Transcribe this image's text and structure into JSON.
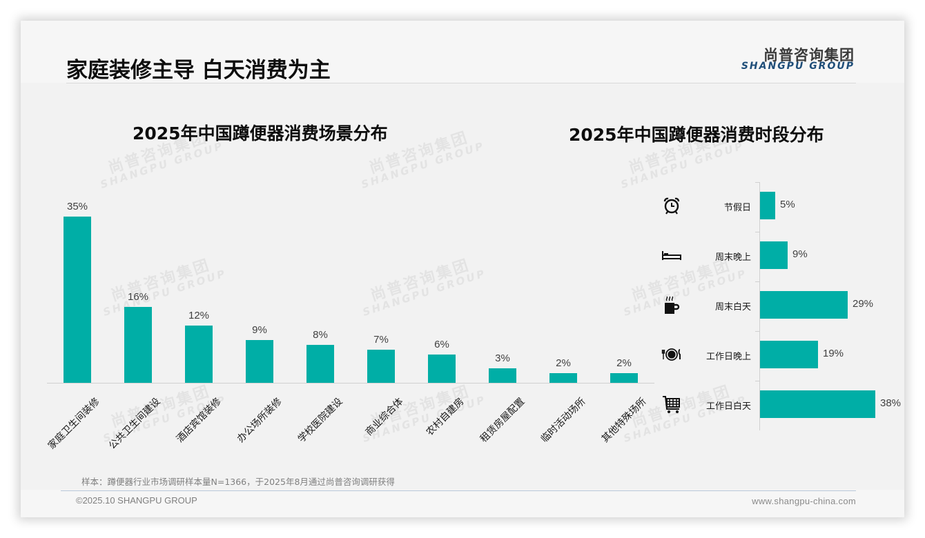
{
  "header": {
    "title": "家庭装修主导 白天消费为主",
    "logo_cn": "尚普咨询集团",
    "logo_en": "SHANGPU GROUP"
  },
  "watermark": {
    "cn": "尚普咨询集团",
    "en": "SHANGPU GROUP"
  },
  "left_chart": {
    "title": "2025年中国蹲便器消费场景分布",
    "bar_color": "#00aea6",
    "items": [
      {
        "label": "家庭卫生间装修",
        "value": 35,
        "display": "35%"
      },
      {
        "label": "公共卫生间建设",
        "value": 16,
        "display": "16%"
      },
      {
        "label": "酒店宾馆装修",
        "value": 12,
        "display": "12%"
      },
      {
        "label": "办公场所装修",
        "value": 9,
        "display": "9%"
      },
      {
        "label": "学校医院建设",
        "value": 8,
        "display": "8%"
      },
      {
        "label": "商业综合体",
        "value": 7,
        "display": "7%"
      },
      {
        "label": "农村自建房",
        "value": 6,
        "display": "6%"
      },
      {
        "label": "租赁房屋配置",
        "value": 3,
        "display": "3%"
      },
      {
        "label": "临时活动场所",
        "value": 2,
        "display": "2%"
      },
      {
        "label": "其他特殊场所",
        "value": 2,
        "display": "2%"
      }
    ]
  },
  "right_chart": {
    "title": "2025年中国蹲便器消费时段分布",
    "bar_color": "#00aea6",
    "items": [
      {
        "label": "节假日",
        "value": 5,
        "display": "5%",
        "icon": "alarm-clock-icon"
      },
      {
        "label": "周末晚上",
        "value": 9,
        "display": "9%",
        "icon": "bed-icon"
      },
      {
        "label": "周末白天",
        "value": 29,
        "display": "29%",
        "icon": "coffee-cup-icon"
      },
      {
        "label": "工作日晚上",
        "value": 19,
        "display": "19%",
        "icon": "dining-plate-icon"
      },
      {
        "label": "工作日白天",
        "value": 38,
        "display": "38%",
        "icon": "shopping-cart-icon"
      }
    ]
  },
  "footer": {
    "note": "样本：蹲便器行业市场调研样本量N=1366，于2025年8月通过尚普咨询调研获得",
    "copyright": "©2025.10 SHANGPU GROUP",
    "website": "www.shangpu-china.com"
  },
  "chart_data": [
    {
      "type": "bar",
      "title": "2025年中国蹲便器消费场景分布",
      "categories": [
        "家庭卫生间装修",
        "公共卫生间建设",
        "酒店宾馆装修",
        "办公场所装修",
        "学校医院建设",
        "商业综合体",
        "农村自建房",
        "租赁房屋配置",
        "临时活动场所",
        "其他特殊场所"
      ],
      "values": [
        35,
        16,
        12,
        9,
        8,
        7,
        6,
        3,
        2,
        2
      ],
      "unit": "%",
      "xlabel": "",
      "ylabel": "",
      "ylim": [
        0,
        35
      ],
      "grid": false,
      "data_labels": true,
      "legend": null
    },
    {
      "type": "bar",
      "orientation": "horizontal",
      "title": "2025年中国蹲便器消费时段分布",
      "categories": [
        "节假日",
        "周末晚上",
        "周末白天",
        "工作日晚上",
        "工作日白天"
      ],
      "values": [
        5,
        9,
        29,
        19,
        38
      ],
      "unit": "%",
      "xlabel": "",
      "ylabel": "",
      "xlim": [
        0,
        38
      ],
      "grid": false,
      "data_labels": true,
      "legend": null
    }
  ]
}
